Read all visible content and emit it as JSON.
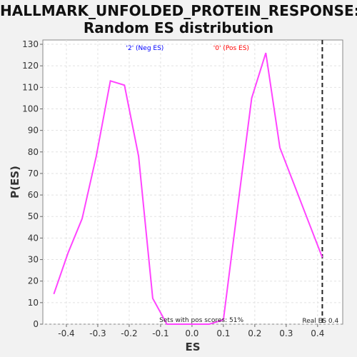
{
  "chart_data": {
    "type": "line",
    "title_line1": "HALLMARK_UNFOLDED_PROTEIN_RESPONSE:",
    "title_line2": "Random ES distribution",
    "xlabel": "ES",
    "ylabel": "P(ES)",
    "xlim": [
      -0.475,
      0.48
    ],
    "ylim": [
      0,
      132
    ],
    "x_ticks": [
      -0.4,
      -0.3,
      -0.2,
      -0.1,
      0.0,
      0.1,
      0.2,
      0.3,
      0.4
    ],
    "x_tick_labels": [
      "-0.4",
      "-0.3",
      "-0.2",
      "-0.1",
      "0.0",
      "0.1",
      "0.2",
      "0.3",
      "0.4"
    ],
    "y_ticks": [
      0,
      10,
      20,
      30,
      40,
      50,
      60,
      70,
      80,
      90,
      100,
      110,
      120,
      130
    ],
    "grid": true,
    "series": [
      {
        "color": "#ff44ff",
        "points": [
          [
            -0.44,
            14
          ],
          [
            -0.395,
            33
          ],
          [
            -0.35,
            49
          ],
          [
            -0.305,
            78
          ],
          [
            -0.26,
            113
          ],
          [
            -0.215,
            111
          ],
          [
            -0.17,
            78
          ],
          [
            -0.125,
            12
          ],
          [
            -0.08,
            0
          ],
          [
            -0.035,
            0
          ],
          [
            0.01,
            0
          ],
          [
            0.055,
            0
          ],
          [
            0.1,
            2
          ],
          [
            0.145,
            54
          ],
          [
            0.19,
            105
          ],
          [
            0.235,
            126
          ],
          [
            0.28,
            82
          ],
          [
            0.325,
            65
          ],
          [
            0.37,
            48
          ],
          [
            0.415,
            31
          ]
        ]
      }
    ],
    "annotations": {
      "neg_label": "'2' (Neg ES)",
      "neg_color": "#0000ff",
      "pos_label": "'0' (Pos ES)",
      "pos_color": "#ff0000",
      "pos_scores_text": "Sets with pos scores: 51%",
      "real_es_text": "Real ES 0.4",
      "real_es_value": 0.415
    }
  }
}
